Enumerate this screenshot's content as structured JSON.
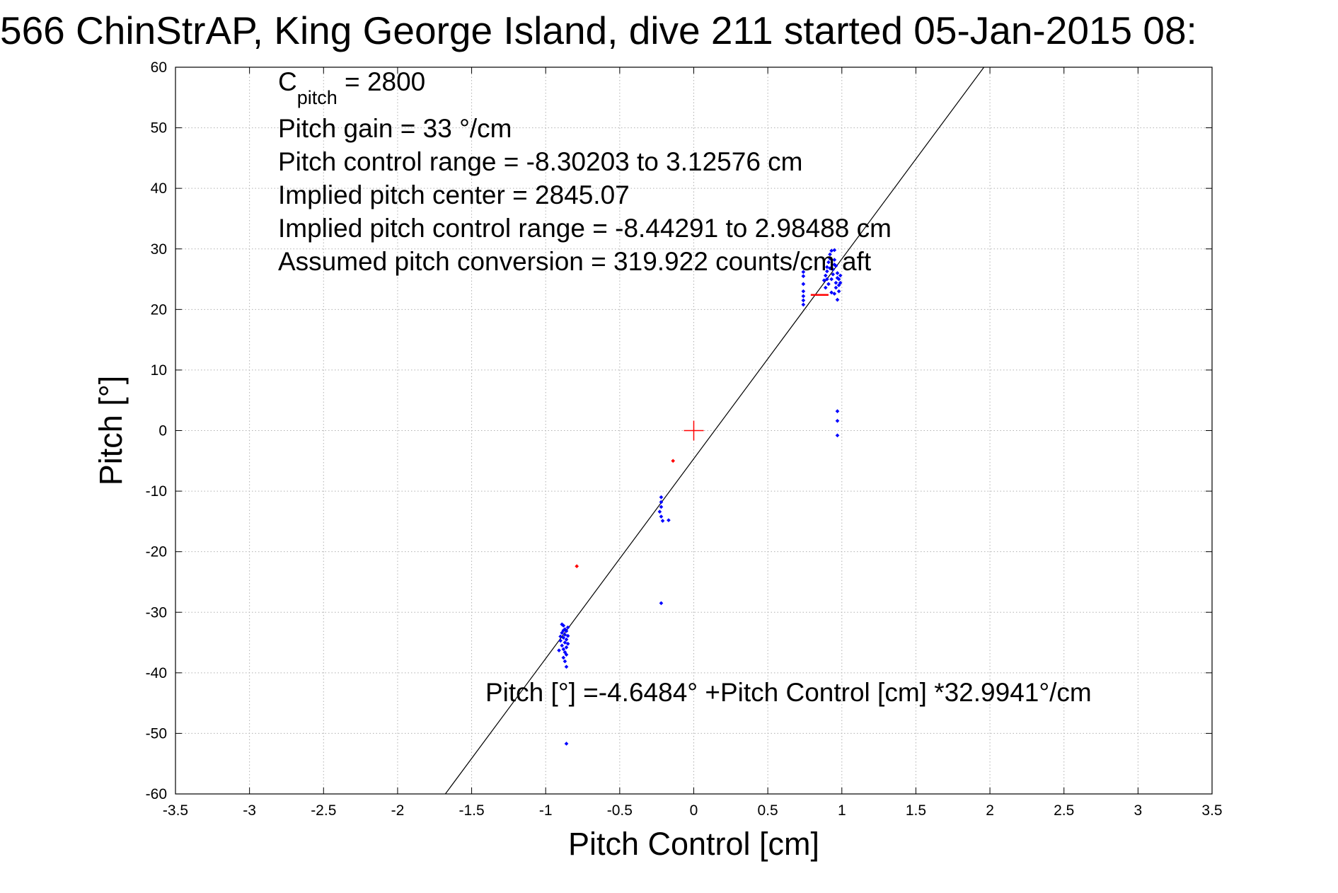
{
  "chart_data": {
    "type": "scatter",
    "title": "566 ChinStrAP, King George Island, dive 211 started 05-Jan-2015 08:",
    "xlabel": "Pitch Control [cm]",
    "ylabel": "Pitch [°]",
    "xlim": [
      -3.5,
      3.5
    ],
    "ylim": [
      -60,
      60
    ],
    "xticks": [
      -3.5,
      -3,
      -2.5,
      -2,
      -1.5,
      -1,
      -0.5,
      0,
      0.5,
      1,
      1.5,
      2,
      2.5,
      3,
      3.5
    ],
    "xtick_labels": [
      "-3.5",
      "-3",
      "-2.5",
      "-2",
      "-1.5",
      "-1",
      "-0.5",
      "0",
      "0.5",
      "1",
      "1.5",
      "2",
      "2.5",
      "3",
      "3.5"
    ],
    "yticks": [
      -60,
      -50,
      -40,
      -30,
      -20,
      -10,
      0,
      10,
      20,
      30,
      40,
      50,
      60
    ],
    "ytick_labels": [
      "-60",
      "-50",
      "-40",
      "-30",
      "-20",
      "-10",
      "0",
      "10",
      "20",
      "30",
      "40",
      "50",
      "60"
    ],
    "grid": true,
    "fit_line": {
      "intercept": -4.6484,
      "slope": 32.9941,
      "color": "#000000",
      "label": "Pitch [°] =-4.6484° +Pitch Control [cm] *32.9941°/cm"
    },
    "annotations": {
      "c_pitch_main": "C",
      "c_pitch_sub": "pitch",
      "c_pitch_value": " = 2800",
      "lines": [
        "Pitch gain = 33 °/cm",
        "Pitch control range = -8.30203 to 3.12576 cm",
        "Implied pitch center = 2845.07",
        "Implied pitch control range = -8.44291 to 2.98488 cm",
        "Assumed pitch conversion = 319.922 counts/cm aft"
      ]
    },
    "center_marker": {
      "x": 0,
      "y": 0,
      "color": "#ff0000"
    },
    "series": [
      {
        "color": "#0000ff",
        "points": [
          [
            -0.88,
            -32.2
          ],
          [
            -0.87,
            -32.8
          ],
          [
            -0.86,
            -33.1
          ],
          [
            -0.89,
            -33.4
          ],
          [
            -0.87,
            -33.7
          ],
          [
            -0.85,
            -33.9
          ],
          [
            -0.88,
            -34.2
          ],
          [
            -0.86,
            -34.5
          ],
          [
            -0.9,
            -34.7
          ],
          [
            -0.87,
            -35.0
          ],
          [
            -0.85,
            -35.2
          ],
          [
            -0.89,
            -35.5
          ],
          [
            -0.86,
            -35.8
          ],
          [
            -0.88,
            -36.1
          ],
          [
            -0.91,
            -36.3
          ],
          [
            -0.87,
            -36.6
          ],
          [
            -0.86,
            -37.0
          ],
          [
            -0.88,
            -37.5
          ],
          [
            -0.87,
            -38.1
          ],
          [
            -0.86,
            -39.0
          ],
          [
            -0.85,
            -32.5
          ],
          [
            -0.89,
            -32.0
          ],
          [
            -0.88,
            -33.0
          ],
          [
            -0.9,
            -34.0
          ],
          [
            -0.86,
            -51.7
          ],
          [
            -0.22,
            -28.5
          ],
          [
            -0.22,
            -11.0
          ],
          [
            -0.22,
            -11.8
          ],
          [
            -0.22,
            -12.6
          ],
          [
            -0.23,
            -13.4
          ],
          [
            -0.22,
            -14.2
          ],
          [
            -0.21,
            -14.9
          ],
          [
            -0.17,
            -14.8
          ],
          [
            0.74,
            20.8
          ],
          [
            0.74,
            21.5
          ],
          [
            0.74,
            22.2
          ],
          [
            0.74,
            23.0
          ],
          [
            0.74,
            24.2
          ],
          [
            0.74,
            25.5
          ],
          [
            0.74,
            26.2
          ],
          [
            0.88,
            24.8
          ],
          [
            0.89,
            25.6
          ],
          [
            0.9,
            26.3
          ],
          [
            0.9,
            27.0
          ],
          [
            0.91,
            27.8
          ],
          [
            0.92,
            28.4
          ],
          [
            0.92,
            29.1
          ],
          [
            0.93,
            29.7
          ],
          [
            0.93,
            25.0
          ],
          [
            0.94,
            25.8
          ],
          [
            0.94,
            26.6
          ],
          [
            0.95,
            27.4
          ],
          [
            0.95,
            28.2
          ],
          [
            0.95,
            22.6
          ],
          [
            0.96,
            23.6
          ],
          [
            0.96,
            24.4
          ],
          [
            0.97,
            25.2
          ],
          [
            0.97,
            26.0
          ],
          [
            0.97,
            21.6
          ],
          [
            0.98,
            23.0
          ],
          [
            0.98,
            24.0
          ],
          [
            0.98,
            25.0
          ],
          [
            0.99,
            24.4
          ],
          [
            0.99,
            25.6
          ],
          [
            0.91,
            24.2
          ],
          [
            0.89,
            23.6
          ],
          [
            0.93,
            22.8
          ],
          [
            0.95,
            29.8
          ],
          [
            0.92,
            26.8
          ],
          [
            0.96,
            27.2
          ],
          [
            0.9,
            25.0
          ],
          [
            0.97,
            3.2
          ],
          [
            0.97,
            1.6
          ],
          [
            0.97,
            -0.8
          ]
        ]
      },
      {
        "color": "#ff0000",
        "points": [
          [
            -0.14,
            -5.0
          ],
          [
            -0.79,
            -22.4
          ]
        ]
      }
    ],
    "red_segment": {
      "x": [
        0.79,
        0.91
      ],
      "y": 22.4,
      "color": "#ff0000"
    }
  }
}
